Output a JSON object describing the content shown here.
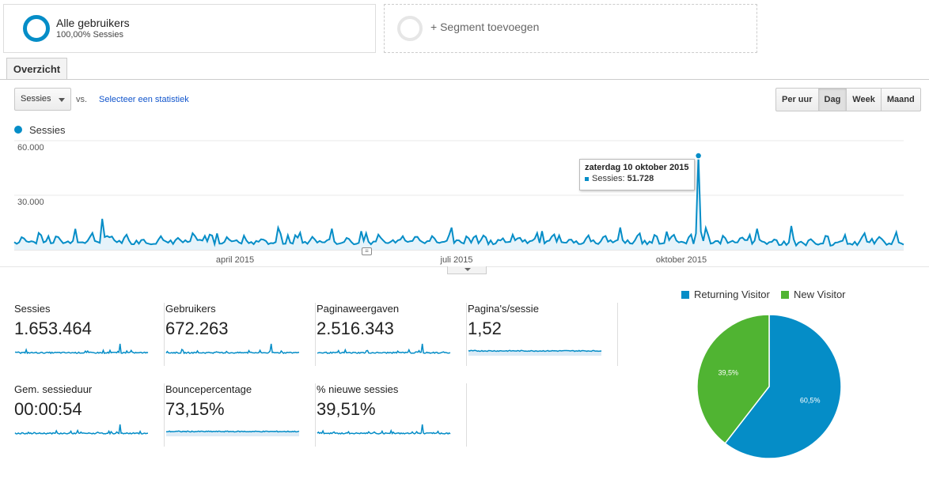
{
  "segments": {
    "primary": {
      "title": "Alle gebruikers",
      "subtitle": "100,00% Sessies"
    },
    "add_label": "+ Segment toevoegen"
  },
  "tabs": [
    {
      "label": "Overzicht",
      "active": true
    }
  ],
  "controls": {
    "metric_select": "Sessies",
    "vs_label": "vs.",
    "secondary_link": "Selecteer een statistiek",
    "periods": [
      "Per uur",
      "Dag",
      "Week",
      "Maand"
    ],
    "active_period": "Dag"
  },
  "legend": {
    "label": "Sessies",
    "color": "#058dc7"
  },
  "tooltip": {
    "date": "zaterdag 10 oktober 2015",
    "metric": "Sessies:",
    "value": "51.728"
  },
  "chart_data": [
    {
      "type": "area",
      "series": [
        {
          "name": "Sessies",
          "color": "#058dc7"
        }
      ],
      "ylim": [
        0,
        60000
      ],
      "y_ticks": [
        "60.000",
        "30.000"
      ],
      "x_ticks": [
        "april 2015",
        "juli 2015",
        "oktober 2015"
      ],
      "grid": true,
      "peaks": [
        {
          "label": "zaterdag 10 oktober 2015",
          "value": 51728
        }
      ]
    },
    {
      "type": "pie",
      "legend_position": "top",
      "slices": [
        {
          "name": "Returning Visitor",
          "value": 60.5,
          "label": "60,5%",
          "color": "#058dc7"
        },
        {
          "name": "New Visitor",
          "value": 39.5,
          "label": "39,5%",
          "color": "#50b432"
        }
      ]
    }
  ],
  "scorecards": [
    {
      "label": "Sessies",
      "value": "1.653.464"
    },
    {
      "label": "Gebruikers",
      "value": "672.263"
    },
    {
      "label": "Paginaweergaven",
      "value": "2.516.343"
    },
    {
      "label": "Pagina's/sessie",
      "value": "1,52"
    },
    {
      "label": "Gem. sessieduur",
      "value": "00:00:54"
    },
    {
      "label": "Bouncepercentage",
      "value": "73,15%"
    },
    {
      "label": "% nieuwe sessies",
      "value": "39,51%"
    }
  ]
}
